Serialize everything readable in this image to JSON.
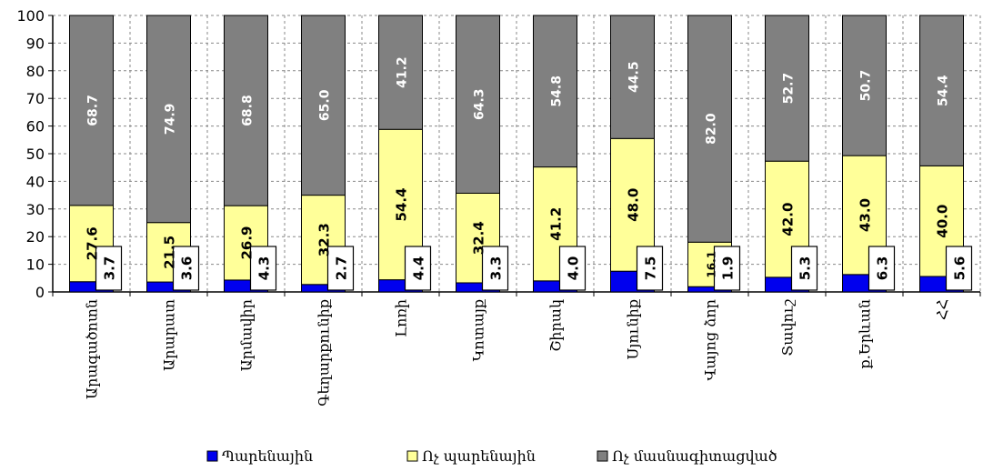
{
  "chart_data": {
    "type": "bar",
    "stacked": true,
    "orientation": "vertical",
    "categories": [
      "Արագածոտն",
      "Արարատ",
      "Արմավիր",
      "Գեղարքունիք",
      "Լոռի",
      "Կոտայք",
      "Շիրակ",
      "Սյունիք",
      "Վայոց ձոր",
      "Տավուշ",
      "ք.Երևան",
      "ՀՀ"
    ],
    "series": [
      {
        "name": "Պարենային",
        "color": "#0000ee",
        "values": [
          3.7,
          3.6,
          4.3,
          2.7,
          4.4,
          3.3,
          4.0,
          7.5,
          1.9,
          5.3,
          6.3,
          5.6
        ],
        "labels": [
          "3.7",
          "3.6",
          "4.3",
          "2.7",
          "4.4",
          "3.3",
          "4.0",
          "7.5",
          "1.9",
          "5.3",
          "6.3",
          "5.6"
        ]
      },
      {
        "name": "Ոչ պարենային",
        "color": "#ffff99",
        "values": [
          27.6,
          21.5,
          26.9,
          32.3,
          54.4,
          32.4,
          41.2,
          48.0,
          16.1,
          42.0,
          43.0,
          40.0
        ],
        "labels": [
          "27.6",
          "21.5",
          "26.9",
          "32.3",
          "54.4",
          "32.4",
          "41.2",
          "48.0",
          "16.1",
          "42.0",
          "43.0",
          "40.0"
        ]
      },
      {
        "name": "Ոչ մասնագիտացված",
        "color": "#808080",
        "values": [
          68.7,
          74.9,
          68.8,
          65.0,
          41.2,
          64.3,
          54.8,
          44.5,
          82.0,
          52.7,
          50.7,
          54.4
        ],
        "labels": [
          "68.7",
          "74.9",
          "68.8",
          "65.0",
          "41.2",
          "64.3",
          "54.8",
          "44.5",
          "82.0",
          "52.7",
          "50.7",
          "54.4"
        ]
      }
    ],
    "y_ticks": [
      "0",
      "10",
      "20",
      "30",
      "40",
      "50",
      "60",
      "70",
      "80",
      "90",
      "100"
    ],
    "ylim": [
      0,
      100
    ],
    "grid": true,
    "legend_position": "bottom",
    "title": "",
    "xlabel": "",
    "ylabel": ""
  }
}
